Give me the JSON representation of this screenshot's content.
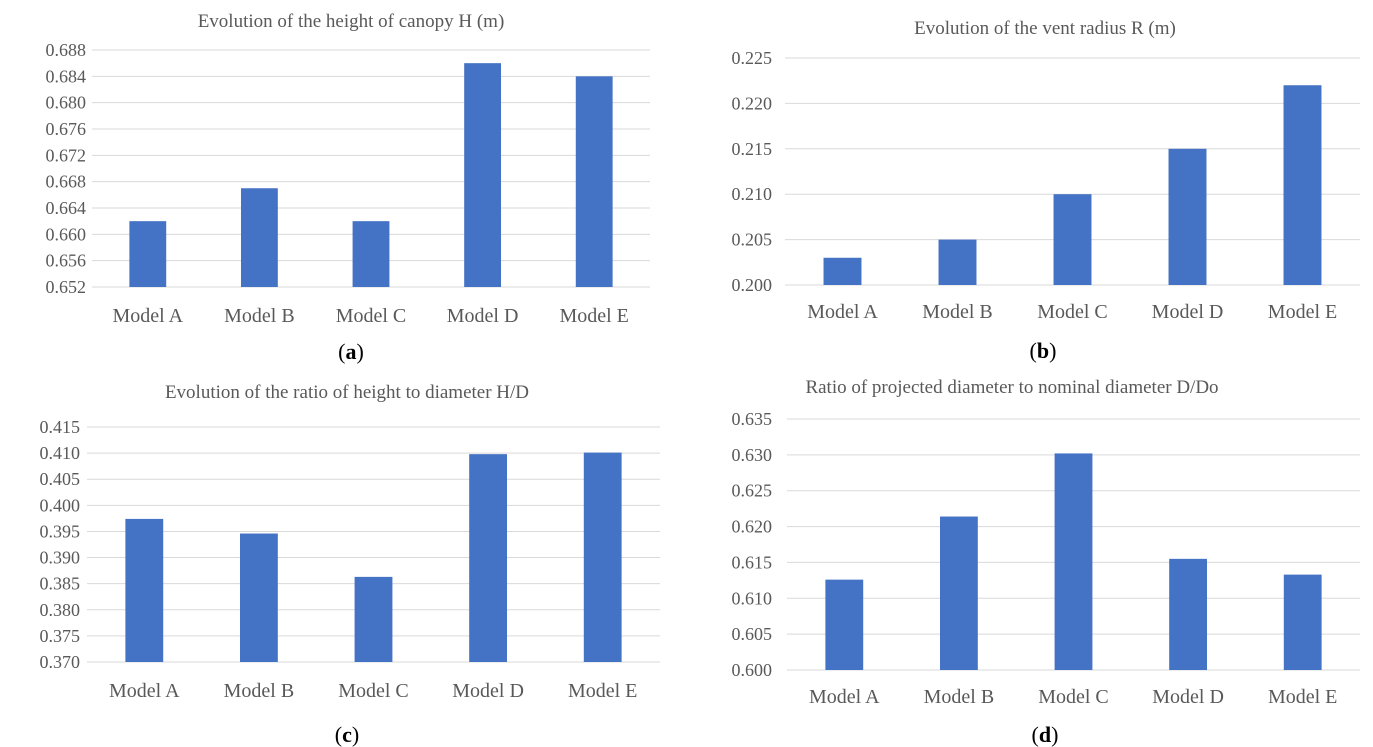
{
  "colors": {
    "bar": "#4472c4",
    "grid": "#d9d9d9",
    "text": "#595959"
  },
  "chart_data": [
    {
      "type": "bar",
      "panel": "a",
      "title": "Evolution of the height of canopy H (m)",
      "categories": [
        "Model A",
        "Model B",
        "Model C",
        "Model D",
        "Model E"
      ],
      "values": [
        0.662,
        0.667,
        0.662,
        0.686,
        0.684
      ],
      "ylim": [
        0.652,
        0.688
      ],
      "yticks": [
        "0.652",
        "0.656",
        "0.660",
        "0.664",
        "0.668",
        "0.672",
        "0.676",
        "0.680",
        "0.684",
        "0.688"
      ],
      "grid": true
    },
    {
      "type": "bar",
      "panel": "b",
      "title": "Evolution of the vent radius R (m)",
      "categories": [
        "Model A",
        "Model B",
        "Model C",
        "Model D",
        "Model E"
      ],
      "values": [
        0.203,
        0.205,
        0.21,
        0.215,
        0.222
      ],
      "ylim": [
        0.2,
        0.225
      ],
      "yticks": [
        "0.200",
        "0.205",
        "0.210",
        "0.215",
        "0.220",
        "0.225"
      ],
      "grid": true
    },
    {
      "type": "bar",
      "panel": "c",
      "title": "Evolution of the ratio of height to diameter H/D",
      "categories": [
        "Model A",
        "Model B",
        "Model C",
        "Model D",
        "Model E"
      ],
      "values": [
        0.3974,
        0.3946,
        0.3863,
        0.4098,
        0.4101
      ],
      "ylim": [
        0.37,
        0.415
      ],
      "yticks": [
        "0.370",
        "0.375",
        "0.380",
        "0.385",
        "0.390",
        "0.395",
        "0.400",
        "0.405",
        "0.410",
        "0.415"
      ],
      "grid": true
    },
    {
      "type": "bar",
      "panel": "d",
      "title": "Ratio of projected diameter to nominal diameter D/Do",
      "categories": [
        "Model A",
        "Model B",
        "Model C",
        "Model D",
        "Model E"
      ],
      "values": [
        0.6126,
        0.6214,
        0.6302,
        0.6155,
        0.6133
      ],
      "ylim": [
        0.6,
        0.635
      ],
      "yticks": [
        "0.600",
        "0.605",
        "0.610",
        "0.615",
        "0.620",
        "0.625",
        "0.630",
        "0.635"
      ],
      "grid": true
    }
  ],
  "panel_labels": [
    "a",
    "b",
    "c",
    "d"
  ]
}
